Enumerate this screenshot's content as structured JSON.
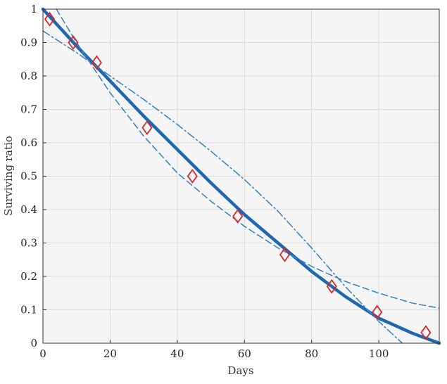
{
  "chart_data": {
    "type": "line",
    "title": "",
    "xlabel": "Days",
    "ylabel": "Surviving ratio",
    "xlim": [
      0,
      118
    ],
    "ylim": [
      0,
      1
    ],
    "xticks": [
      0,
      20,
      40,
      60,
      80,
      100
    ],
    "yticks": [
      0,
      0.1,
      0.2,
      0.3,
      0.4,
      0.5,
      0.6,
      0.7,
      0.8,
      0.9,
      1
    ],
    "grid": true,
    "legend": "none",
    "series": [
      {
        "style": "markers",
        "marker": "diamond",
        "color": "#d62728",
        "x": [
          2,
          9,
          16,
          31,
          44.5,
          58,
          72,
          86,
          99.5,
          114
        ],
        "y": [
          0.97,
          0.9,
          0.84,
          0.645,
          0.5,
          0.38,
          0.265,
          0.17,
          0.093,
          0.032
        ]
      },
      {
        "style": "solid-thick",
        "color": "#1f67b0",
        "x": [
          0,
          10,
          20,
          30,
          40,
          50,
          60,
          70,
          80,
          90,
          100,
          110,
          118
        ],
        "y": [
          1.0,
          0.89,
          0.785,
          0.68,
          0.58,
          0.48,
          0.385,
          0.3,
          0.215,
          0.14,
          0.075,
          0.03,
          0.0
        ]
      },
      {
        "style": "dashed",
        "color": "#3a86c8",
        "x": [
          4,
          10,
          20,
          30,
          40,
          50,
          60,
          70,
          80,
          90,
          100,
          110,
          118
        ],
        "y": [
          1.0,
          0.9,
          0.75,
          0.62,
          0.51,
          0.425,
          0.35,
          0.285,
          0.23,
          0.185,
          0.15,
          0.12,
          0.105
        ]
      },
      {
        "style": "dashdot",
        "color": "#3a86c8",
        "x": [
          0,
          10,
          20,
          30,
          40,
          50,
          60,
          70,
          80,
          90,
          100,
          107
        ],
        "y": [
          0.935,
          0.87,
          0.8,
          0.73,
          0.655,
          0.575,
          0.49,
          0.395,
          0.285,
          0.17,
          0.065,
          0.0
        ]
      }
    ]
  },
  "colors": {
    "plot_background": "#f5f5f5",
    "grid": "#dadada",
    "axes": "#333333"
  }
}
